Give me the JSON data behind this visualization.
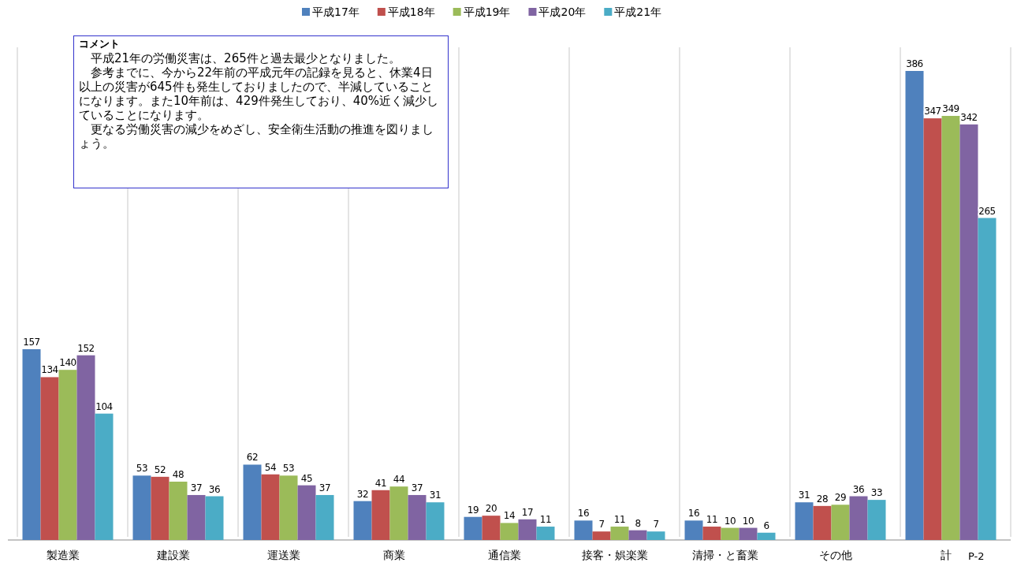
{
  "chart_data": {
    "type": "bar",
    "categories": [
      "製造業",
      "建設業",
      "運送業",
      "商業",
      "通信業",
      "接客・娯楽業",
      "清掃・と畜業",
      "その他",
      "計"
    ],
    "series": [
      {
        "name": "平成17年",
        "color": "#4f81bd",
        "values": [
          157,
          53,
          62,
          32,
          19,
          16,
          16,
          31,
          386
        ]
      },
      {
        "name": "平成18年",
        "color": "#c0504d",
        "values": [
          134,
          52,
          54,
          41,
          20,
          7,
          11,
          28,
          347
        ]
      },
      {
        "name": "平成19年",
        "color": "#9bbb59",
        "values": [
          140,
          48,
          53,
          44,
          14,
          11,
          10,
          29,
          349
        ]
      },
      {
        "name": "平成20年",
        "color": "#8064a2",
        "values": [
          152,
          37,
          45,
          37,
          17,
          8,
          10,
          36,
          342
        ]
      },
      {
        "name": "平成21年",
        "color": "#4bacc6",
        "values": [
          104,
          36,
          37,
          31,
          11,
          7,
          6,
          33,
          265
        ]
      }
    ],
    "data_labels": true,
    "grid": "x",
    "legend": "top",
    "annotations": [
      "コメント",
      "平成21年の労働災害は、265件と過去最少となりました。",
      "参考までに、今から22年前の平成元年の記録を見ると、休業4日以上の災害が645件も発生しておりましたので、半減していることになります。また10年前は、429件発生しており、40%近く減少していることになります。",
      "更なる労働災害の減少をめざし、安全衛生活動の推進を図りましょう。",
      "P-2"
    ]
  }
}
